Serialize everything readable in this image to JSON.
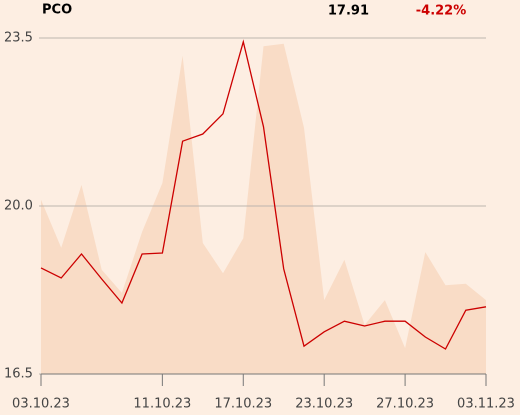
{
  "chart_data": {
    "type": "line",
    "title": "PCO",
    "price": "17.91",
    "change": "-4.22%",
    "categories": [
      "03.10.23",
      null,
      null,
      null,
      null,
      null,
      "11.10.23",
      null,
      null,
      null,
      "17.10.23",
      null,
      null,
      null,
      "23.10.23",
      null,
      null,
      null,
      "27.10.23",
      null,
      null,
      null,
      "03.11.23"
    ],
    "series": [
      {
        "kind": "area",
        "color": "#f9dcc6",
        "values": [
          20.13,
          19.13,
          20.44,
          18.67,
          18.19,
          19.46,
          20.48,
          23.13,
          19.23,
          18.6,
          19.33,
          23.33,
          23.38,
          21.63,
          18.04,
          18.88,
          17.52,
          18.04,
          17.04,
          19.04,
          18.35,
          18.38,
          18.04
        ]
      },
      {
        "kind": "line",
        "color": "#cc0000",
        "values": [
          18.71,
          18.5,
          19.0,
          18.48,
          17.98,
          19.0,
          19.02,
          21.35,
          21.5,
          21.92,
          23.42,
          21.65,
          18.69,
          17.08,
          17.38,
          17.6,
          17.5,
          17.6,
          17.6,
          17.27,
          17.02,
          17.83,
          17.9
        ]
      }
    ],
    "change_color": "#cc0000",
    "ylim": [
      16.5,
      23.5
    ],
    "yticks": [
      16.5,
      {
        "value": 20,
        "label": "20.0"
      },
      23.5
    ],
    "grid": true
  }
}
